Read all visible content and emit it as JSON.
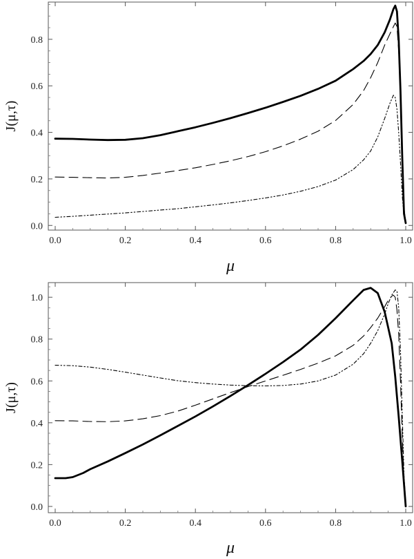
{
  "chart_data": [
    {
      "type": "line",
      "title": "",
      "xlabel": "μ",
      "ylabel": "J(μ,τ)",
      "xlim": [
        0,
        1
      ],
      "ylim": [
        -0.02,
        0.96
      ],
      "xticks": [
        "0.0",
        "0.2",
        "0.4",
        "0.6",
        "0.8",
        "1.0"
      ],
      "yticks": [
        "0.0",
        "0.2",
        "0.4",
        "0.6",
        "0.8"
      ],
      "grid": false,
      "series": [
        {
          "style": "solid-thick",
          "x": [
            0.0,
            0.05,
            0.1,
            0.15,
            0.2,
            0.25,
            0.3,
            0.35,
            0.4,
            0.45,
            0.5,
            0.55,
            0.6,
            0.65,
            0.7,
            0.75,
            0.8,
            0.85,
            0.88,
            0.9,
            0.92,
            0.94,
            0.955,
            0.965,
            0.97,
            0.975,
            0.98,
            0.985,
            0.99,
            0.995,
            1.0
          ],
          "y": [
            0.373,
            0.372,
            0.369,
            0.367,
            0.368,
            0.375,
            0.388,
            0.405,
            0.422,
            0.441,
            0.461,
            0.483,
            0.506,
            0.531,
            0.557,
            0.587,
            0.622,
            0.672,
            0.707,
            0.737,
            0.775,
            0.83,
            0.885,
            0.93,
            0.945,
            0.92,
            0.8,
            0.58,
            0.3,
            0.05,
            0.01
          ]
        },
        {
          "style": "long-dash",
          "x": [
            0.0,
            0.05,
            0.1,
            0.15,
            0.2,
            0.25,
            0.3,
            0.35,
            0.4,
            0.45,
            0.5,
            0.55,
            0.6,
            0.65,
            0.7,
            0.75,
            0.8,
            0.85,
            0.88,
            0.9,
            0.92,
            0.94,
            0.96,
            0.97,
            0.975,
            0.98,
            0.985,
            0.99,
            0.995,
            1.0
          ],
          "y": [
            0.208,
            0.207,
            0.205,
            0.204,
            0.207,
            0.215,
            0.225,
            0.236,
            0.248,
            0.262,
            0.278,
            0.296,
            0.317,
            0.342,
            0.371,
            0.405,
            0.451,
            0.52,
            0.58,
            0.635,
            0.7,
            0.775,
            0.84,
            0.87,
            0.855,
            0.75,
            0.55,
            0.3,
            0.08,
            0.01
          ]
        },
        {
          "style": "dash-dot",
          "x": [
            0.0,
            0.05,
            0.1,
            0.15,
            0.2,
            0.25,
            0.3,
            0.35,
            0.4,
            0.45,
            0.5,
            0.55,
            0.6,
            0.65,
            0.7,
            0.75,
            0.8,
            0.85,
            0.88,
            0.9,
            0.92,
            0.94,
            0.955,
            0.965,
            0.97,
            0.975,
            0.98,
            0.985,
            0.99,
            0.995,
            1.0
          ],
          "y": [
            0.035,
            0.039,
            0.044,
            0.049,
            0.054,
            0.06,
            0.066,
            0.072,
            0.08,
            0.088,
            0.097,
            0.107,
            0.118,
            0.131,
            0.147,
            0.167,
            0.195,
            0.24,
            0.282,
            0.32,
            0.38,
            0.46,
            0.525,
            0.56,
            0.55,
            0.5,
            0.4,
            0.27,
            0.13,
            0.04,
            0.01
          ]
        }
      ]
    },
    {
      "type": "line",
      "title": "",
      "xlabel": "μ",
      "ylabel": "J(μ,τ)",
      "xlim": [
        0,
        1
      ],
      "ylim": [
        -0.03,
        1.07
      ],
      "xticks": [
        "0.0",
        "0.2",
        "0.4",
        "0.6",
        "0.8",
        "1.0"
      ],
      "yticks": [
        "0.0",
        "0.2",
        "0.4",
        "0.6",
        "0.8",
        "1.0"
      ],
      "grid": false,
      "series": [
        {
          "style": "solid-thick",
          "x": [
            0.0,
            0.03,
            0.05,
            0.08,
            0.1,
            0.15,
            0.2,
            0.25,
            0.3,
            0.35,
            0.4,
            0.45,
            0.5,
            0.55,
            0.6,
            0.65,
            0.7,
            0.75,
            0.8,
            0.85,
            0.88,
            0.9,
            0.92,
            0.94,
            0.96,
            0.97,
            0.98,
            0.99,
            1.0
          ],
          "y": [
            0.135,
            0.135,
            0.14,
            0.16,
            0.178,
            0.215,
            0.255,
            0.296,
            0.34,
            0.385,
            0.43,
            0.478,
            0.528,
            0.58,
            0.634,
            0.69,
            0.75,
            0.82,
            0.9,
            0.985,
            1.035,
            1.045,
            1.02,
            0.93,
            0.78,
            0.62,
            0.43,
            0.22,
            0.0
          ]
        },
        {
          "style": "long-dash",
          "x": [
            0.0,
            0.05,
            0.1,
            0.15,
            0.2,
            0.25,
            0.3,
            0.35,
            0.4,
            0.45,
            0.5,
            0.55,
            0.6,
            0.65,
            0.7,
            0.75,
            0.8,
            0.85,
            0.88,
            0.9,
            0.92,
            0.94,
            0.95,
            0.96,
            0.965,
            0.97,
            0.975,
            0.98,
            0.985,
            0.99,
            0.995,
            1.0
          ],
          "y": [
            0.41,
            0.409,
            0.406,
            0.405,
            0.409,
            0.419,
            0.434,
            0.456,
            0.484,
            0.514,
            0.544,
            0.573,
            0.6,
            0.627,
            0.655,
            0.685,
            0.72,
            0.77,
            0.815,
            0.855,
            0.9,
            0.955,
            0.985,
            1.005,
            1.01,
            1.0,
            0.94,
            0.82,
            0.6,
            0.35,
            0.12,
            0.02
          ]
        },
        {
          "style": "dash-dot",
          "x": [
            0.0,
            0.05,
            0.1,
            0.15,
            0.2,
            0.25,
            0.3,
            0.35,
            0.4,
            0.45,
            0.5,
            0.55,
            0.6,
            0.65,
            0.7,
            0.75,
            0.8,
            0.85,
            0.88,
            0.9,
            0.92,
            0.94,
            0.95,
            0.96,
            0.97,
            0.975,
            0.98,
            0.985,
            0.99,
            0.995,
            1.0
          ],
          "y": [
            0.675,
            0.673,
            0.666,
            0.655,
            0.642,
            0.628,
            0.614,
            0.601,
            0.592,
            0.585,
            0.58,
            0.577,
            0.576,
            0.578,
            0.585,
            0.6,
            0.628,
            0.68,
            0.73,
            0.78,
            0.84,
            0.92,
            0.97,
            1.01,
            1.035,
            1.03,
            0.95,
            0.75,
            0.45,
            0.15,
            0.02
          ]
        }
      ]
    }
  ]
}
